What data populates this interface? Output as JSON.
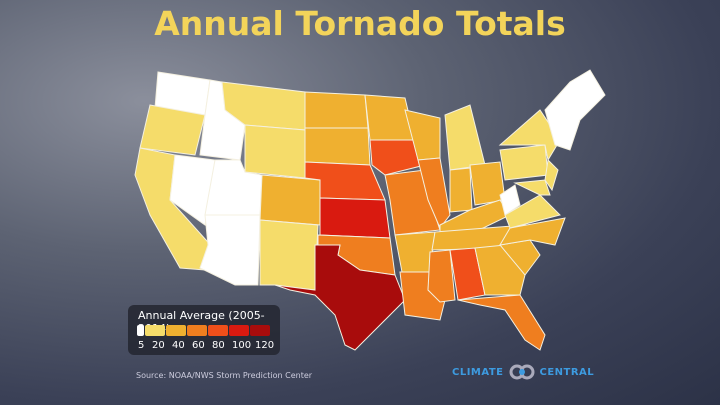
{
  "title": "Annual Tornado Totals",
  "legend": {
    "title": "Annual Average (2005-2014)",
    "ticks": [
      "5",
      "20",
      "40",
      "60",
      "80",
      "100",
      "120"
    ],
    "colors": [
      "#ffffff",
      "#f5dc6a",
      "#efb030",
      "#ef7e1f",
      "#f04f1a",
      "#d91a10",
      "#a80c0c"
    ]
  },
  "source": "Source: NOAA/NWS Storm Prediction Center",
  "logo": {
    "left": "CLIMATE",
    "right": "CENTRAL"
  },
  "states": {
    "WA": 0,
    "OR": 1,
    "CA": 1,
    "NV": 0,
    "ID": 0,
    "UT": 0,
    "AZ": 0,
    "MT": 1,
    "WY": 1,
    "CO": 2,
    "NM": 1,
    "ND": 2,
    "SD": 2,
    "NE": 4,
    "KS": 5,
    "OK": 3,
    "TX": 6,
    "MN": 2,
    "IA": 4,
    "MO": 3,
    "AR": 2,
    "LA": 3,
    "WI": 2,
    "IL": 3,
    "MI": 1,
    "IN": 2,
    "OH": 2,
    "KY": 2,
    "TN": 2,
    "MS": 3,
    "AL": 4,
    "GA": 2,
    "FL": 3,
    "SC": 2,
    "NC": 2,
    "VA": 1,
    "WV": 0,
    "PA": 1,
    "NY": 1,
    "MD": 1,
    "NJ": 1,
    "NE_REG": 0
  }
}
